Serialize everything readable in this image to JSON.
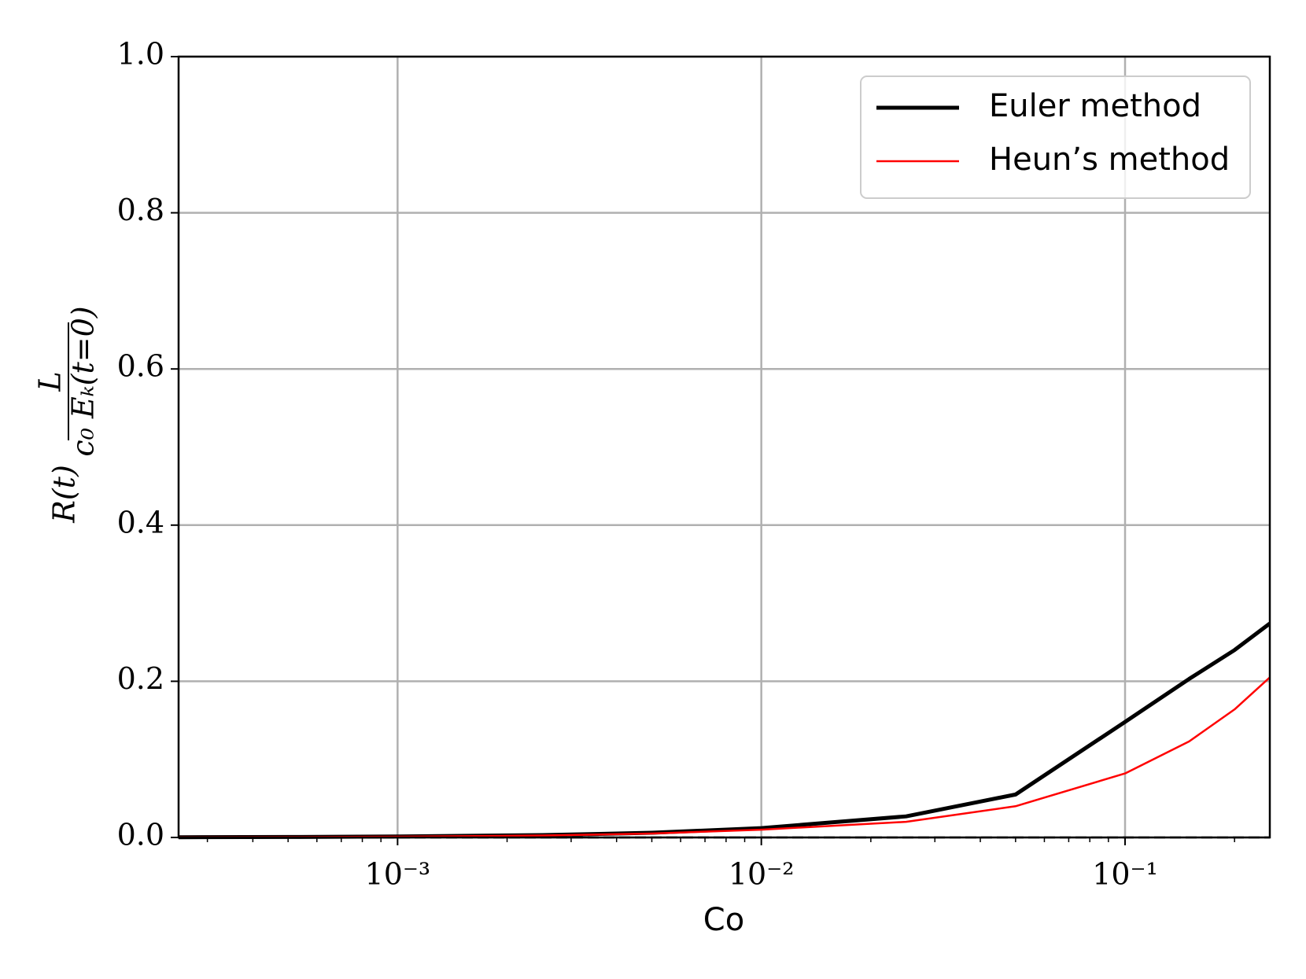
{
  "chart_data": {
    "type": "line",
    "x_label": "Co",
    "y_label": {
      "prefix": "R(t)",
      "numerator": "L",
      "denominator": "c₀ Eₖ(t=0)"
    },
    "x": [
      0.00025,
      0.0005,
      0.001,
      0.0025,
      0.005,
      0.01,
      0.025,
      0.05,
      0.1,
      0.15,
      0.2,
      0.25
    ],
    "series": [
      {
        "name": "Euler method",
        "color": "#000000",
        "linewidth": 5,
        "values": [
          0.0003,
          0.0006,
          0.0012,
          0.003,
          0.006,
          0.012,
          0.027,
          0.055,
          0.148,
          0.203,
          0.24,
          0.274
        ]
      },
      {
        "name": "Heun’s method",
        "color": "#ff0000",
        "linewidth": 2.5,
        "values": [
          0.0002,
          0.0005,
          0.001,
          0.0025,
          0.005,
          0.01,
          0.02,
          0.04,
          0.082,
          0.123,
          0.164,
          0.205
        ]
      }
    ],
    "hline": 0,
    "xscale": "log",
    "xlim": [
      0.00025,
      0.25
    ],
    "xticks": [
      {
        "value": 0.001,
        "label": "10⁻³"
      },
      {
        "value": 0.01,
        "label": "10⁻²"
      },
      {
        "value": 0.1,
        "label": "10⁻¹"
      }
    ],
    "xminorticks": [
      0.0003,
      0.0004,
      0.0005,
      0.0006,
      0.0007,
      0.0008,
      0.0009,
      0.002,
      0.003,
      0.004,
      0.005,
      0.006,
      0.007,
      0.008,
      0.009,
      0.02,
      0.03,
      0.04,
      0.05,
      0.06,
      0.07,
      0.08,
      0.09,
      0.2
    ],
    "ylim": [
      0,
      1
    ],
    "yticks": [
      {
        "value": 0,
        "label": "0.0"
      },
      0.2,
      0.4,
      0.6,
      0.8,
      {
        "value": 1,
        "label": "1.0"
      }
    ],
    "grid": true,
    "legend": "upper right"
  }
}
